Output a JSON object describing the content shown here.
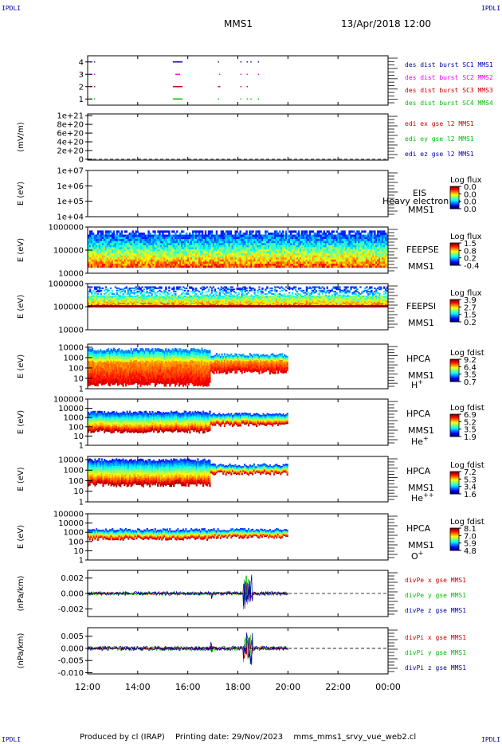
{
  "header": {
    "corner_tl": "IPDLI",
    "corner_tr": "IPDLI",
    "corner_bl": "IPDLI",
    "corner_br": "IPDLI",
    "title": "MMS1",
    "date": "13/Apr/2018 12:00"
  },
  "footer": {
    "produced": "Produced by cl (IRAP)",
    "printing": "Printing date: 29/Nov/2023",
    "file": "mms_mms1_srvy_vue_web2.cl"
  },
  "colors": {
    "blue": "#0000ff",
    "green": "#00c000",
    "red": "#ff0000",
    "magenta": "#ff00ff",
    "dark_red": "#cc0000",
    "dark_blue": "#0000aa"
  },
  "chart_data": {
    "type": "multi-panel-timeseries",
    "x_tick_labels": [
      "12:00",
      "14:00",
      "16:00",
      "18:00",
      "20:00",
      "22:00",
      "00:00"
    ],
    "x_hours": [
      0,
      2,
      4,
      6,
      8,
      10,
      12
    ],
    "panels": [
      {
        "id": "burst",
        "type": "scatter",
        "ylabel": "",
        "ylim": [
          0.5,
          4.5
        ],
        "yticks": [
          "1",
          "2",
          "3",
          "4"
        ],
        "yticks_values": [
          1,
          2,
          3,
          4
        ],
        "legend": [
          {
            "text": "des dist burst SC1 MMS1",
            "color": "#0000aa"
          },
          {
            "text": "des dist burst SC2 MMS2",
            "color": "#ff00ff"
          },
          {
            "text": "des dist burst SC3 MMS3",
            "color": "#cc0000"
          },
          {
            "text": "des dist burst SC4 MMS4",
            "color": "#00c000"
          }
        ]
      },
      {
        "id": "edi",
        "type": "line",
        "ylabel": "(mV/m)",
        "yticks": [
          "0",
          "2e+20",
          "4e+20",
          "6e+20",
          "8e+20",
          "1e+21"
        ],
        "yticks_values": [
          0,
          2e+20,
          4e+20,
          6e+20,
          8e+20,
          1e+21
        ],
        "ylim": [
          -2e+19,
          1.04e+21
        ],
        "legend": [
          {
            "text": "edi ex gse l2 MMS1",
            "color": "#cc0000"
          },
          {
            "text": "edi ey gse l2 MMS1",
            "color": "#00c000"
          },
          {
            "text": "edi ez gse l2 MMS1",
            "color": "#0000aa"
          }
        ]
      },
      {
        "id": "eis",
        "type": "heatmap",
        "ylabel": "E (eV)",
        "yticks": [
          "1e+04",
          "1e+05",
          "1e+06",
          "1e+07"
        ],
        "yticks_values": [
          4,
          5,
          6,
          7
        ],
        "ylim": [
          4,
          7
        ],
        "labels": [
          "EIS",
          "MMS1"
        ],
        "overlap_label": "Heavy electron to",
        "colorbar_title": "Log flux",
        "colorbar_ticks": [
          "0.0",
          "0.0",
          "0.0",
          "0.0"
        ]
      },
      {
        "id": "feepse",
        "type": "heatmap",
        "ylabel": "E (eV)",
        "yticks": [
          "10000",
          "100000",
          "1000000"
        ],
        "yticks_values": [
          4,
          5,
          6
        ],
        "ylim": [
          4,
          6
        ],
        "labels": [
          "FEEPSE",
          "MMS1"
        ],
        "colorbar_title": "Log flux",
        "colorbar_ticks": [
          "1.5",
          "0.8",
          "0.2",
          "-0.4"
        ]
      },
      {
        "id": "feepsi",
        "type": "heatmap",
        "ylabel": "E (eV)",
        "yticks": [
          "10000",
          "100000",
          "1000000"
        ],
        "yticks_values": [
          4,
          5,
          6
        ],
        "ylim": [
          4,
          6
        ],
        "labels": [
          "FEEPSI",
          "MMS1"
        ],
        "colorbar_title": "Log flux",
        "colorbar_ticks": [
          "3.9",
          "2.7",
          "1.5",
          "0.2"
        ]
      },
      {
        "id": "hpca_h",
        "type": "heatmap",
        "ylabel": "E (eV)",
        "yticks": [
          "1",
          "10",
          "100",
          "1000",
          "10000"
        ],
        "yticks_values": [
          0,
          1,
          2,
          3,
          4
        ],
        "ylim": [
          0,
          4.3
        ],
        "labels": [
          "HPCA",
          "MMS1"
        ],
        "species": "H",
        "species_sup": "+",
        "colorbar_title": "Log fdist",
        "colorbar_ticks": [
          "9.2",
          "6.4",
          "3.5",
          "0.7"
        ]
      },
      {
        "id": "hpca_he",
        "type": "heatmap",
        "ylabel": "E (eV)",
        "yticks": [
          "1",
          "10",
          "100",
          "1000",
          "10000",
          "100000"
        ],
        "yticks_values": [
          0,
          1,
          2,
          3,
          4,
          5
        ],
        "ylim": [
          0,
          5
        ],
        "labels": [
          "HPCA",
          "MMS1"
        ],
        "species": "He",
        "species_sup": "+",
        "colorbar_title": "Log fdist",
        "colorbar_ticks": [
          "6.9",
          "5.2",
          "3.5",
          "1.9"
        ]
      },
      {
        "id": "hpca_hepp",
        "type": "heatmap",
        "ylabel": "E (eV)",
        "yticks": [
          "1",
          "10",
          "100",
          "1000",
          "10000"
        ],
        "yticks_values": [
          0,
          1,
          2,
          3,
          4
        ],
        "ylim": [
          0,
          4.3
        ],
        "labels": [
          "HPCA",
          "MMS1"
        ],
        "species": "He",
        "species_sup": "++",
        "colorbar_title": "Log fdist",
        "colorbar_ticks": [
          "7.2",
          "5.3",
          "3.4",
          "1.6"
        ]
      },
      {
        "id": "hpca_o",
        "type": "heatmap",
        "ylabel": "E (eV)",
        "yticks": [
          "1",
          "10",
          "100",
          "1000",
          "10000",
          "100000"
        ],
        "yticks_values": [
          0,
          1,
          2,
          3,
          4,
          5
        ],
        "ylim": [
          0,
          5
        ],
        "labels": [
          "HPCA",
          "MMS1"
        ],
        "species": "O",
        "species_sup": "+",
        "colorbar_title": "Log fdist",
        "colorbar_ticks": [
          "8.1",
          "7.0",
          "5.9",
          "4.8"
        ]
      },
      {
        "id": "divpe",
        "type": "line",
        "ylabel": "(nPa/km)",
        "yticks": [
          "-0.002",
          "0.000",
          "0.002"
        ],
        "yticks_values": [
          -0.002,
          0,
          0.002
        ],
        "ylim": [
          -0.003,
          0.003
        ],
        "legend": [
          {
            "text": "divPe x gse MMS1",
            "color": "#cc0000"
          },
          {
            "text": "divPe y gse MMS1",
            "color": "#00c000"
          },
          {
            "text": "divPe z gse MMS1",
            "color": "#0000aa"
          }
        ]
      },
      {
        "id": "divpi",
        "type": "line",
        "ylabel": "(nPa/km)",
        "yticks": [
          "-0.010",
          "-0.005",
          "0.000",
          "0.005"
        ],
        "yticks_values": [
          -0.01,
          -0.005,
          0,
          0.005
        ],
        "ylim": [
          -0.0105,
          0.0085
        ],
        "legend": [
          {
            "text": "divPi x gse MMS1",
            "color": "#cc0000"
          },
          {
            "text": "divPi y gse MMS1",
            "color": "#00c000"
          },
          {
            "text": "divPi z gse MMS1",
            "color": "#0000aa"
          }
        ]
      }
    ]
  }
}
